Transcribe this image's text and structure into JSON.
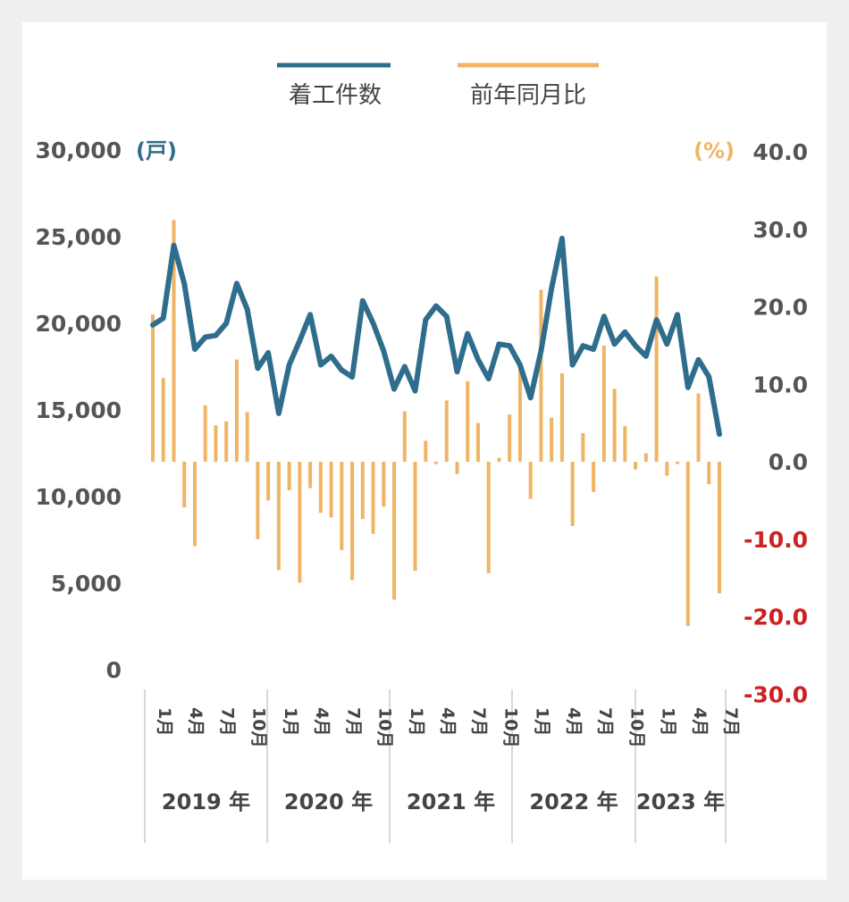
{
  "chart_data": {
    "type": "bar+line",
    "legend": [
      {
        "name": "着工件数",
        "color": "#2e6e8c",
        "kind": "line"
      },
      {
        "name": "前年同月比",
        "color": "#f0b466",
        "kind": "bar"
      }
    ],
    "left_axis": {
      "unit": "(戸)",
      "unit_color": "#2e6e8c",
      "ticks": [
        "30,000",
        "25,000",
        "20,000",
        "15,000",
        "10,000",
        "5,000",
        "0"
      ],
      "range": [
        0,
        30000
      ]
    },
    "right_axis": {
      "unit": "(%)",
      "unit_color": "#f0b466",
      "ticks": [
        "40.0",
        "30.0",
        "20.0",
        "10.0",
        "0.0",
        "-10.0",
        "-20.0",
        "-30.0"
      ],
      "range": [
        -30,
        40
      ],
      "positive_color": "#555555",
      "negative_color": "#cc2222"
    },
    "years": [
      {
        "label": "2019 年",
        "months": [
          "1月",
          "4月",
          "7月",
          "10月"
        ]
      },
      {
        "label": "2020 年",
        "months": [
          "1月",
          "4月",
          "7月",
          "10月"
        ]
      },
      {
        "label": "2021 年",
        "months": [
          "1月",
          "4月",
          "7月",
          "10月"
        ]
      },
      {
        "label": "2022 年",
        "months": [
          "1月",
          "4月",
          "7月",
          "10月"
        ]
      },
      {
        "label": "2023 年",
        "months": [
          "1月",
          "4月",
          "7月"
        ]
      }
    ],
    "series": [
      {
        "name": "着工件数",
        "values": [
          19900,
          20300,
          24500,
          22300,
          18500,
          19200,
          19300,
          20000,
          22300,
          20800,
          17400,
          18300,
          14800,
          17600,
          19000,
          20500,
          17600,
          18100,
          17300,
          16900,
          21300,
          20000,
          18400,
          16200,
          17500,
          16100,
          20200,
          21000,
          20400,
          17200,
          19400,
          17900,
          16800,
          18800,
          18700,
          17600,
          15700,
          18400,
          22000,
          24900,
          17600,
          18700,
          18500,
          20400,
          18800,
          19500,
          18700,
          18100,
          20200,
          18800,
          20500,
          16300,
          17900,
          16900,
          13600
        ]
      },
      {
        "name": "前年同月比",
        "values": [
          19.0,
          10.8,
          31.2,
          -5.9,
          -10.9,
          7.3,
          4.7,
          5.2,
          13.2,
          6.4,
          -10.0,
          -5.0,
          -14.0,
          -3.7,
          -15.6,
          -3.4,
          -6.6,
          -7.2,
          -11.4,
          -15.3,
          -7.4,
          -9.3,
          -5.8,
          -17.8,
          6.5,
          -14.1,
          2.7,
          -0.3,
          7.9,
          -1.6,
          10.4,
          5.0,
          -14.4,
          0.5,
          6.1,
          12.3,
          -4.8,
          22.2,
          5.7,
          11.4,
          -8.3,
          3.7,
          -3.9,
          15.0,
          9.4,
          4.6,
          -1.0,
          1.1,
          23.9,
          -1.8,
          -0.3,
          -21.2,
          8.8,
          -2.9,
          -17.0
        ]
      }
    ]
  }
}
